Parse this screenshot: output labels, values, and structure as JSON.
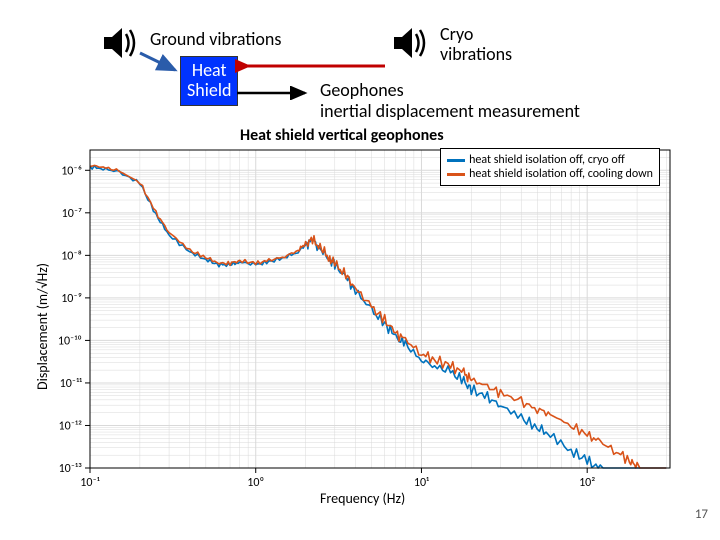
{
  "top": {
    "ground_vibrations": "Ground vibrations",
    "cryo_vibrations": "Cryo\nvibrations",
    "heat_shield": "Heat\nShield",
    "geophones": "Geophones\ninertial displacement measurement",
    "heat_shield_bg": "#0033ff",
    "heat_shield_fg": "#ffffff",
    "arrow_long_color": "#c00000",
    "arrow_short_color": "#2a5caa"
  },
  "chart": {
    "type": "line",
    "title": "Heat shield vertical geophones",
    "title_fontsize": 16,
    "xlabel": "Frequency (Hz)",
    "ylabel": "Displacement (m/√Hz)",
    "label_fontsize": 14,
    "xscale": "log",
    "yscale": "log",
    "xlim": [
      0.1,
      316
    ],
    "ylim": [
      1e-13,
      3e-06
    ],
    "xticks": [
      0.1,
      1,
      10,
      100
    ],
    "xtick_labels": [
      "10⁻¹",
      "10⁰",
      "10¹",
      "10²"
    ],
    "yticks": [
      1e-13,
      1e-12,
      1e-11,
      1e-10,
      1e-09,
      1e-08,
      1e-07,
      1e-06
    ],
    "ytick_labels": [
      "10⁻¹³",
      "10⁻¹²",
      "10⁻¹¹",
      "10⁻¹⁰",
      "10⁻⁹",
      "10⁻⁸",
      "10⁻⁷",
      "10⁻⁶"
    ],
    "grid_color": "#d9d9d9",
    "axis_color": "#000000",
    "background_color": "#ffffff",
    "line_width": 1.6,
    "legend": {
      "position": "top-right",
      "entries": [
        {
          "label": "heat shield isolation off, cryo off",
          "color": "#0072bd"
        },
        {
          "label": "heat shield isolation off, cooling down",
          "color": "#d95319"
        }
      ]
    },
    "series": [
      {
        "name": "cryo_off",
        "color": "#0072bd",
        "x": [
          0.1,
          0.12,
          0.15,
          0.2,
          0.25,
          0.3,
          0.4,
          0.5,
          0.6,
          0.7,
          0.8,
          1.0,
          1.2,
          1.5,
          1.8,
          2.0,
          2.2,
          2.5,
          2.8,
          3.0,
          3.5,
          4.0,
          5.0,
          6.0,
          7.0,
          8.0,
          10,
          12,
          15,
          18,
          20,
          25,
          30,
          40,
          50,
          60,
          80,
          100,
          120,
          150,
          180,
          200,
          250,
          300
        ],
        "y": [
          1.2e-06,
          1.1e-06,
          9e-07,
          5e-07,
          9e-08,
          3e-08,
          1.2e-08,
          8e-09,
          6e-09,
          6e-09,
          7e-09,
          6e-09,
          7e-09,
          9e-09,
          1.2e-08,
          1.8e-08,
          2.2e-08,
          1.3e-08,
          8e-09,
          6e-09,
          3e-09,
          1.5e-09,
          5e-10,
          2.5e-10,
          1.2e-10,
          8e-11,
          3.5e-11,
          2.5e-11,
          1.8e-11,
          1.1e-11,
          7e-12,
          4.5e-12,
          3e-12,
          1.5e-12,
          9e-13,
          6e-13,
          2.5e-13,
          1.5e-13,
          9e-14,
          6e-14,
          3e-14,
          2e-14,
          1.1e-14,
          7e-15
        ]
      },
      {
        "name": "cooling_down",
        "color": "#d95319",
        "x": [
          0.1,
          0.12,
          0.15,
          0.2,
          0.25,
          0.3,
          0.4,
          0.5,
          0.6,
          0.7,
          0.8,
          1.0,
          1.2,
          1.5,
          1.8,
          2.0,
          2.2,
          2.5,
          2.8,
          3.0,
          3.5,
          4.0,
          5.0,
          6.0,
          7.0,
          8.0,
          10,
          12,
          15,
          18,
          20,
          25,
          30,
          40,
          50,
          60,
          80,
          100,
          120,
          150,
          180,
          200,
          250,
          300
        ],
        "y": [
          1.3e-06,
          1.2e-06,
          9.5e-07,
          5.2e-07,
          1e-07,
          3.5e-08,
          1.3e-08,
          9e-09,
          6.5e-09,
          6.5e-09,
          7.5e-09,
          6.5e-09,
          7.5e-09,
          9.5e-09,
          1.3e-08,
          1.9e-08,
          2.3e-08,
          1.4e-08,
          8.5e-09,
          6.5e-09,
          3.3e-09,
          1.7e-09,
          6e-10,
          3e-10,
          1.5e-10,
          1e-10,
          5e-11,
          3.5e-11,
          2.5e-11,
          1.7e-11,
          1.2e-11,
          8e-12,
          6e-12,
          3.5e-12,
          2.5e-12,
          1.8e-12,
          1e-12,
          6e-13,
          4e-13,
          2.5e-13,
          1.5e-13,
          1e-13,
          6e-14,
          3.5e-14
        ]
      }
    ]
  },
  "page_number": "17"
}
